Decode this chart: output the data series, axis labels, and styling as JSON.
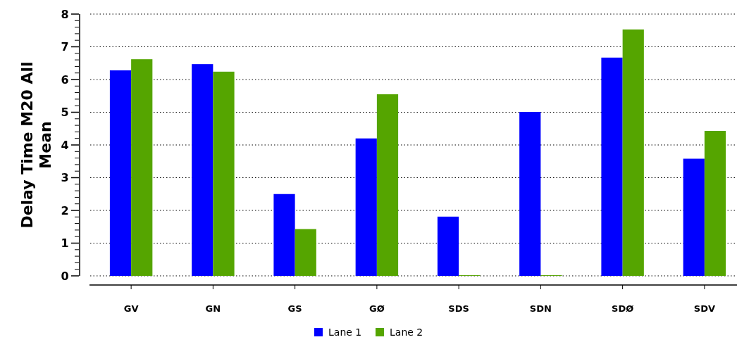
{
  "chart_data": {
    "type": "bar",
    "ylabel": "Delay Time M20 All Mean",
    "categories": [
      "GV",
      "GN",
      "GS",
      "GØ",
      "SDS",
      "SDN",
      "SDØ",
      "SDV"
    ],
    "series": [
      {
        "name": "Lane 1",
        "color": "#0000ff",
        "values": [
          6.28,
          6.47,
          2.5,
          4.2,
          1.81,
          5.01,
          6.67,
          3.58
        ]
      },
      {
        "name": "Lane 2",
        "color": "#55a500",
        "values": [
          6.62,
          6.24,
          1.43,
          5.55,
          0.02,
          0.02,
          7.53,
          4.43
        ]
      }
    ],
    "ylim": [
      0,
      8
    ],
    "yticks": [
      0,
      1,
      2,
      3,
      4,
      5,
      6,
      7,
      8
    ],
    "grid": "y",
    "legend": "bottom"
  }
}
